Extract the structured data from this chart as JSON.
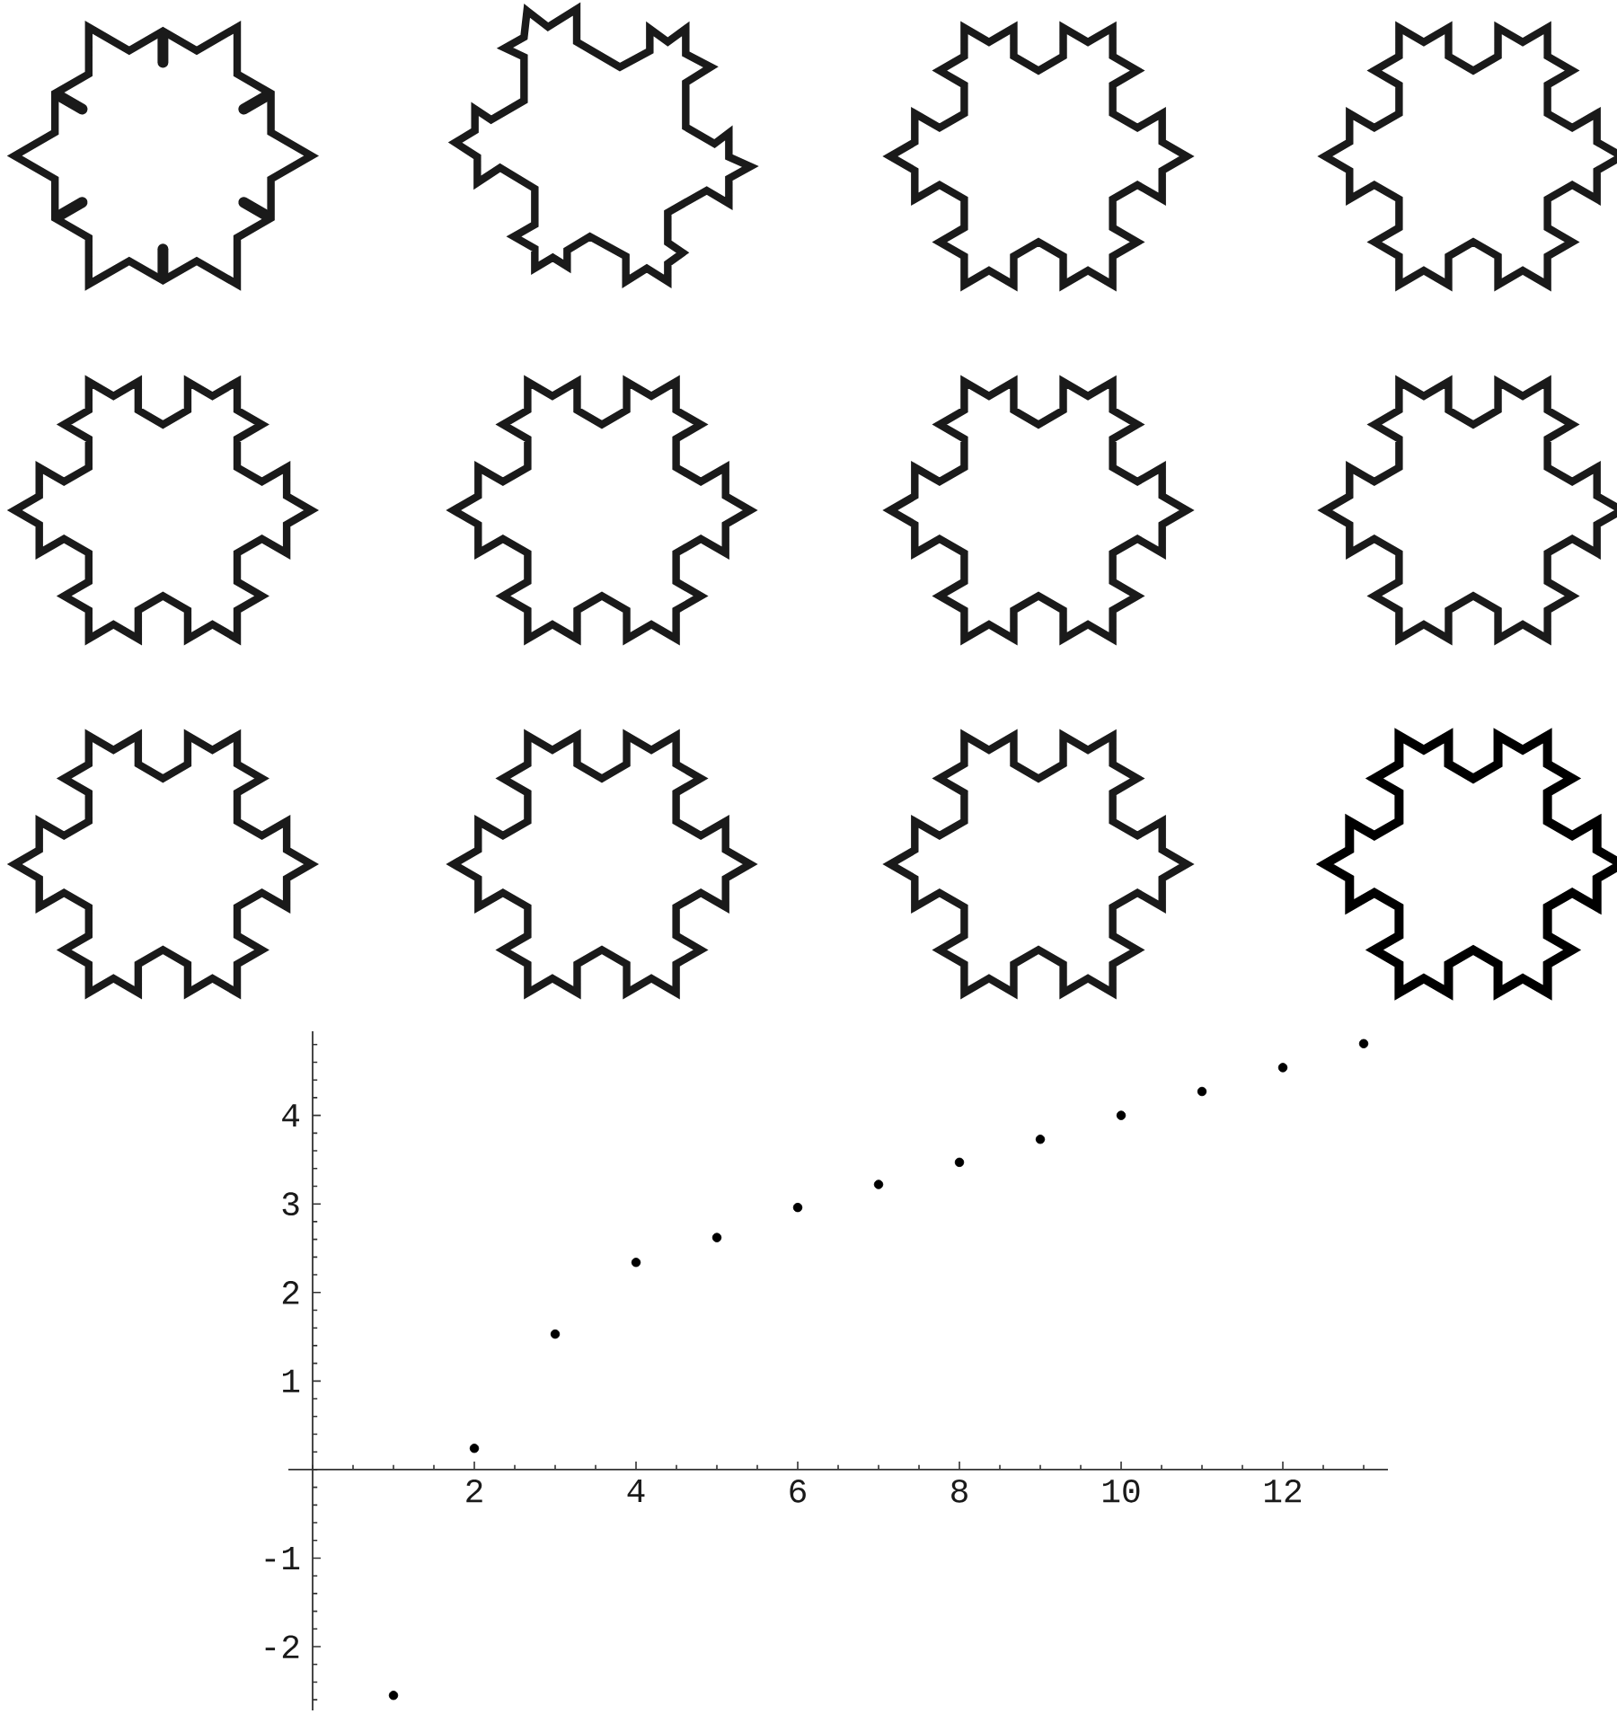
{
  "chart_data": {
    "type": "scatter",
    "x": [
      1,
      2,
      3,
      4,
      5,
      6,
      7,
      8,
      9,
      10,
      11,
      12,
      13
    ],
    "values": [
      -2.55,
      0.24,
      1.53,
      2.34,
      2.62,
      2.96,
      3.22,
      3.47,
      3.73,
      4.0,
      4.27,
      4.54,
      4.81
    ],
    "color": "#000000",
    "marker": "circle",
    "xlim": [
      -0.3,
      13.3
    ],
    "ylim": [
      -2.72,
      4.95
    ],
    "xticks": [
      2,
      4,
      6,
      8,
      10,
      12
    ],
    "yticks": [
      -2,
      -1,
      1,
      2,
      3,
      4
    ]
  }
}
